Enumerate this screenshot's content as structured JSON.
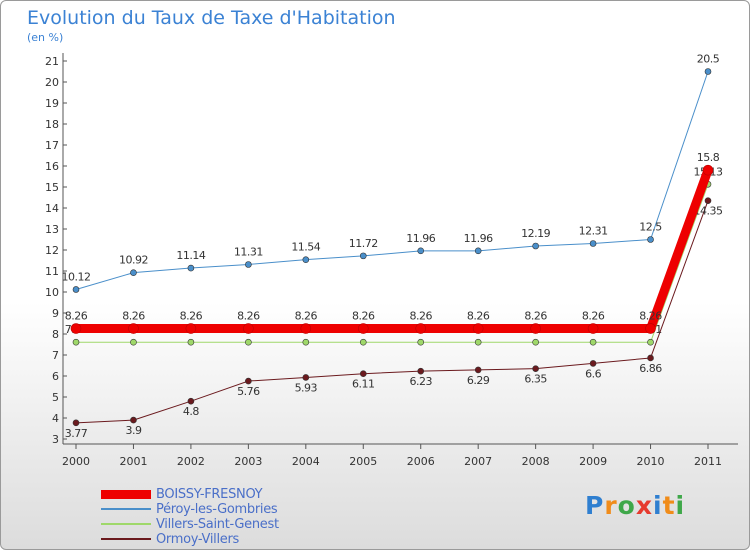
{
  "title": "Evolution du Taux de Taxe d'Habitation",
  "subtitle": "(en %)",
  "logo": {
    "letters": [
      {
        "ch": "P",
        "color": "#2f7fd0"
      },
      {
        "ch": "r",
        "color": "#f08c1a"
      },
      {
        "ch": "o",
        "color": "#3fa84a"
      },
      {
        "ch": "x",
        "color": "#e63a2e"
      },
      {
        "ch": "i",
        "color": "#2f7fd0"
      },
      {
        "ch": "t",
        "color": "#f08c1a"
      },
      {
        "ch": "i",
        "color": "#3fa84a"
      }
    ]
  },
  "chart_data": {
    "type": "line",
    "x": [
      "2000",
      "2001",
      "2002",
      "2003",
      "2004",
      "2005",
      "2006",
      "2007",
      "2008",
      "2009",
      "2010",
      "2011"
    ],
    "ylim": [
      3,
      21
    ],
    "yticks": [
      3,
      4,
      5,
      6,
      7,
      8,
      9,
      10,
      11,
      12,
      13,
      14,
      15,
      16,
      17,
      18,
      19,
      20,
      21
    ],
    "grid": false,
    "legend_position": "bottom-left",
    "series": [
      {
        "name": "Péroy-les-Gombries",
        "color": "#4a8fca",
        "width": 1,
        "values": [
          10.12,
          10.92,
          11.14,
          11.31,
          11.54,
          11.72,
          11.96,
          11.96,
          12.19,
          12.31,
          12.5,
          20.5
        ],
        "labels": [
          "10.12",
          "10.92",
          "11.14",
          "11.31",
          "11.54",
          "11.72",
          "11.96",
          "11.96",
          "12.19",
          "12.31",
          "12.5",
          "20.5"
        ]
      },
      {
        "name": "Villers-Saint-Genest",
        "color": "#9fd86a",
        "width": 1,
        "values": [
          7.61,
          7.61,
          7.61,
          7.61,
          7.61,
          7.61,
          7.61,
          7.61,
          7.61,
          7.61,
          7.61,
          15.13
        ],
        "labels": [
          "7.61",
          "7.61",
          "7.61",
          "7.61",
          "7.61",
          "7.61",
          "7.61",
          "7.61",
          "7.61",
          "7.61",
          "7.61",
          "15.13"
        ]
      },
      {
        "name": "Ormoy-Villers",
        "color": "#6b1a1e",
        "width": 1,
        "values": [
          3.77,
          3.9,
          4.8,
          5.76,
          5.93,
          6.11,
          6.23,
          6.29,
          6.35,
          6.6,
          6.86,
          14.35
        ],
        "labels": [
          "3.77",
          "3.9",
          "4.8",
          "5.76",
          "5.93",
          "6.11",
          "6.23",
          "6.29",
          "6.35",
          "6.6",
          "6.86",
          "14.35"
        ]
      },
      {
        "name": "BOISSY-FRESNOY",
        "color": "#ee0000",
        "width": 9,
        "values": [
          8.26,
          8.26,
          8.26,
          8.26,
          8.26,
          8.26,
          8.26,
          8.26,
          8.26,
          8.26,
          8.26,
          15.8
        ],
        "labels": [
          "8.26",
          "8.26",
          "8.26",
          "8.26",
          "8.26",
          "8.26",
          "8.26",
          "8.26",
          "8.26",
          "8.26",
          "8.26",
          "15.8"
        ]
      }
    ],
    "legend_order": [
      "BOISSY-FRESNOY",
      "Péroy-les-Gombries",
      "Villers-Saint-Genest",
      "Ormoy-Villers"
    ]
  }
}
